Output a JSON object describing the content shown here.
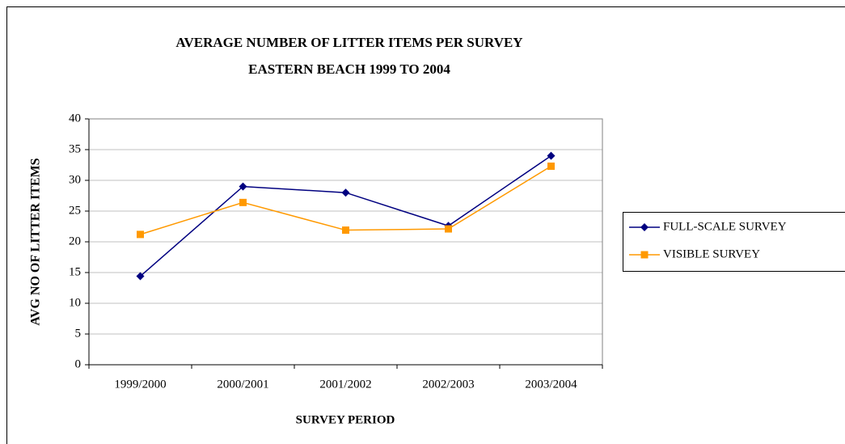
{
  "chart_data": {
    "type": "line",
    "title": "AVERAGE NUMBER OF LITTER ITEMS PER SURVEY",
    "subtitle": "EASTERN BEACH 1999 TO 2004",
    "x_label": "SURVEY PERIOD",
    "y_label": "AVG NO OF LITTER ITEMS",
    "categories": [
      "1999/2000",
      "2000/2001",
      "2001/2002",
      "2002/2003",
      "2003/2004"
    ],
    "series": [
      {
        "name": "FULL-SCALE SURVEY",
        "color": "#000080",
        "marker": "diamond",
        "values": [
          14.4,
          29,
          28,
          22.6,
          34
        ]
      },
      {
        "name": "VISIBLE SURVEY",
        "color": "#FF9900",
        "marker": "square",
        "values": [
          21.2,
          26.4,
          21.9,
          22.1,
          32.3
        ]
      }
    ],
    "ylim": [
      0,
      40
    ],
    "yticks": [
      0,
      5,
      10,
      15,
      20,
      25,
      30,
      35,
      40
    ],
    "grid": true,
    "legend": "right"
  }
}
